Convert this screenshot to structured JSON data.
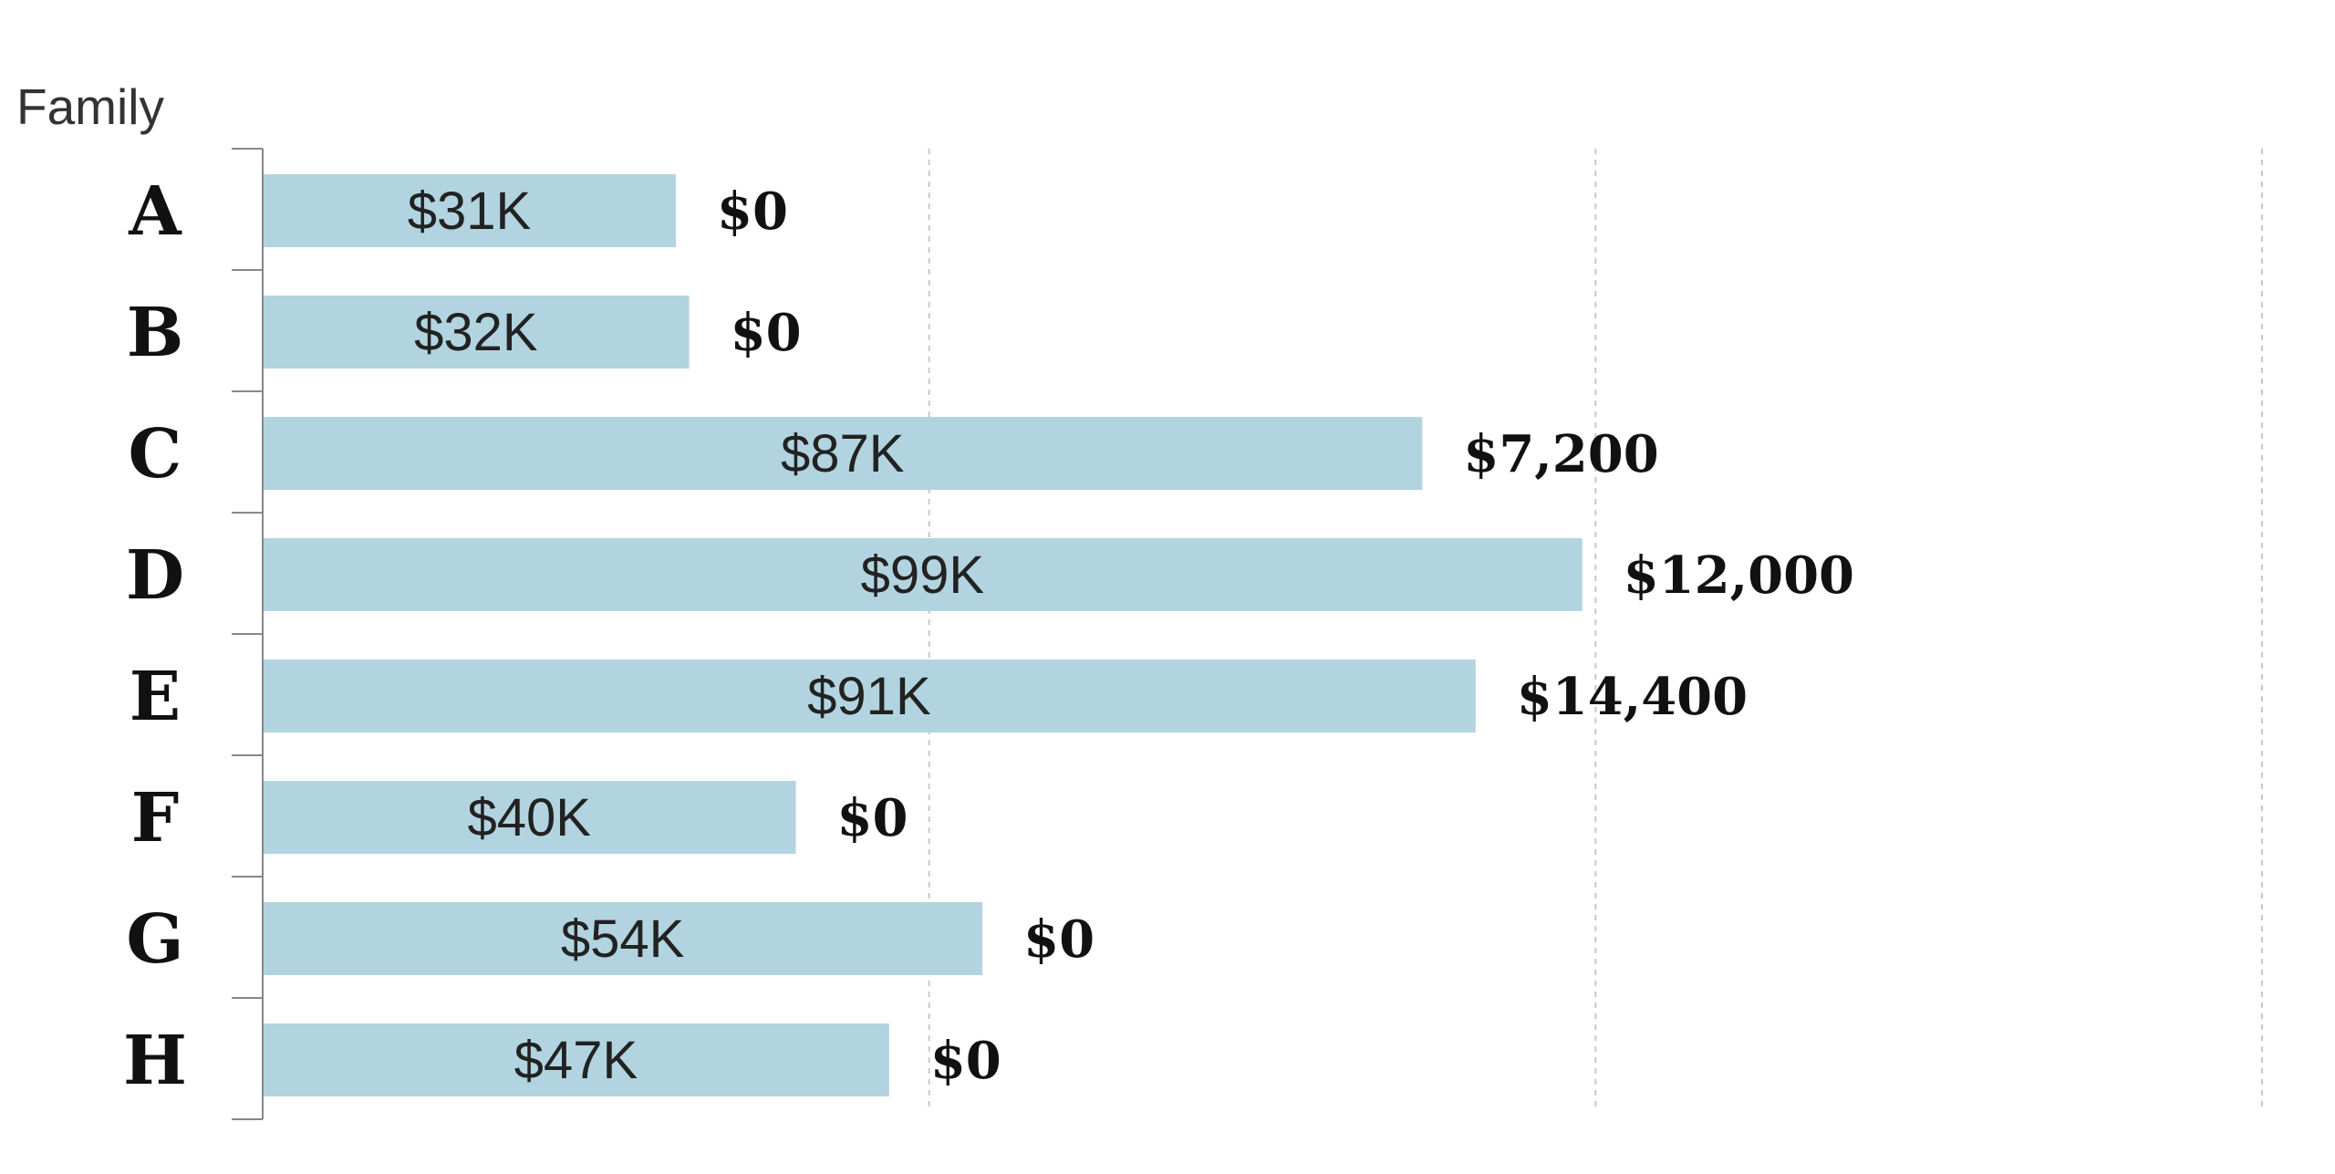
{
  "chart_data": {
    "type": "bar",
    "orientation": "horizontal",
    "ylabel": "Family",
    "categories": [
      "A",
      "B",
      "C",
      "D",
      "E",
      "F",
      "G",
      "H"
    ],
    "values": [
      31,
      32,
      87,
      99,
      91,
      40,
      54,
      47
    ],
    "bar_labels": [
      "$31K",
      "$32K",
      "$87K",
      "$99K",
      "$91K",
      "$40K",
      "$54K",
      "$47K"
    ],
    "secondary_labels": [
      "$0",
      "$0",
      "$7,200",
      "$12,000",
      "$14,400",
      "$0",
      "$0",
      "$0"
    ],
    "xlim": [
      0,
      150
    ],
    "grid": true,
    "bar_color": "#b2d4e0"
  }
}
